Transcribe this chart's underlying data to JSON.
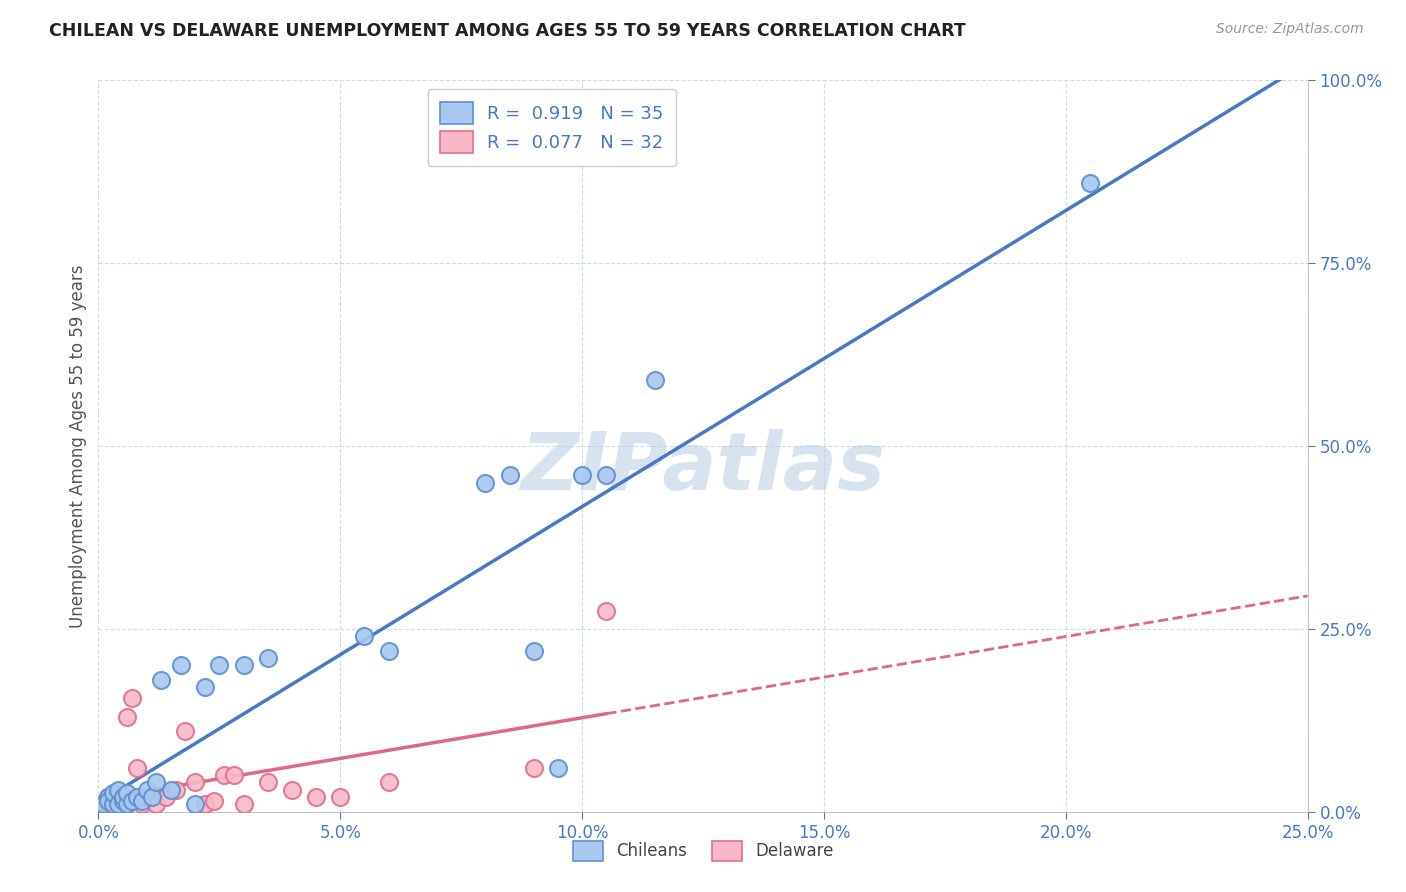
{
  "title": "CHILEAN VS DELAWARE UNEMPLOYMENT AMONG AGES 55 TO 59 YEARS CORRELATION CHART",
  "source": "Source: ZipAtlas.com",
  "xlabel": "",
  "ylabel": "Unemployment Among Ages 55 to 59 years",
  "xlim": [
    0.0,
    0.25
  ],
  "ylim": [
    0.0,
    1.0
  ],
  "xticks": [
    0.0,
    0.05,
    0.1,
    0.15,
    0.2,
    0.25
  ],
  "yticks": [
    0.0,
    0.25,
    0.5,
    0.75,
    1.0
  ],
  "xticklabels": [
    "0.0%",
    "5.0%",
    "10.0%",
    "15.0%",
    "20.0%",
    "25.0%"
  ],
  "yticklabels": [
    "0.0%",
    "25.0%",
    "50.0%",
    "75.0%",
    "100.0%"
  ],
  "chilean_color": "#a8c8f0",
  "delaware_color": "#f8b8c8",
  "chilean_edge_color": "#6090d0",
  "delaware_edge_color": "#e07090",
  "chilean_line_color": "#4878c8",
  "delaware_line_color": "#e06880",
  "chilean_R": 0.919,
  "chilean_N": 35,
  "delaware_R": 0.077,
  "delaware_N": 32,
  "legend_label_1": "Chileans",
  "legend_label_2": "Delaware",
  "watermark": "ZIPatlas",
  "background_color": "#ffffff",
  "grid_color": "#ccdde8",
  "chilean_x": [
    0.001,
    0.002,
    0.002,
    0.003,
    0.003,
    0.004,
    0.004,
    0.005,
    0.005,
    0.006,
    0.006,
    0.007,
    0.008,
    0.009,
    0.01,
    0.011,
    0.012,
    0.013,
    0.015,
    0.017,
    0.02,
    0.022,
    0.025,
    0.03,
    0.035,
    0.055,
    0.06,
    0.08,
    0.085,
    0.09,
    0.095,
    0.1,
    0.105,
    0.115,
    0.205
  ],
  "chilean_y": [
    0.01,
    0.02,
    0.015,
    0.01,
    0.025,
    0.01,
    0.03,
    0.015,
    0.02,
    0.01,
    0.025,
    0.015,
    0.02,
    0.015,
    0.03,
    0.02,
    0.04,
    0.18,
    0.03,
    0.2,
    0.01,
    0.17,
    0.2,
    0.2,
    0.21,
    0.24,
    0.22,
    0.45,
    0.46,
    0.22,
    0.06,
    0.46,
    0.46,
    0.59,
    0.86
  ],
  "delaware_x": [
    0.001,
    0.002,
    0.002,
    0.003,
    0.003,
    0.004,
    0.004,
    0.005,
    0.005,
    0.006,
    0.006,
    0.007,
    0.008,
    0.009,
    0.01,
    0.012,
    0.014,
    0.016,
    0.018,
    0.02,
    0.022,
    0.024,
    0.026,
    0.028,
    0.03,
    0.035,
    0.04,
    0.045,
    0.05,
    0.06,
    0.09,
    0.105
  ],
  "delaware_y": [
    0.01,
    0.01,
    0.02,
    0.01,
    0.015,
    0.02,
    0.02,
    0.01,
    0.015,
    0.01,
    0.13,
    0.155,
    0.06,
    0.01,
    0.02,
    0.01,
    0.02,
    0.03,
    0.11,
    0.04,
    0.01,
    0.015,
    0.05,
    0.05,
    0.01,
    0.04,
    0.03,
    0.02,
    0.02,
    0.04,
    0.06,
    0.275
  ]
}
